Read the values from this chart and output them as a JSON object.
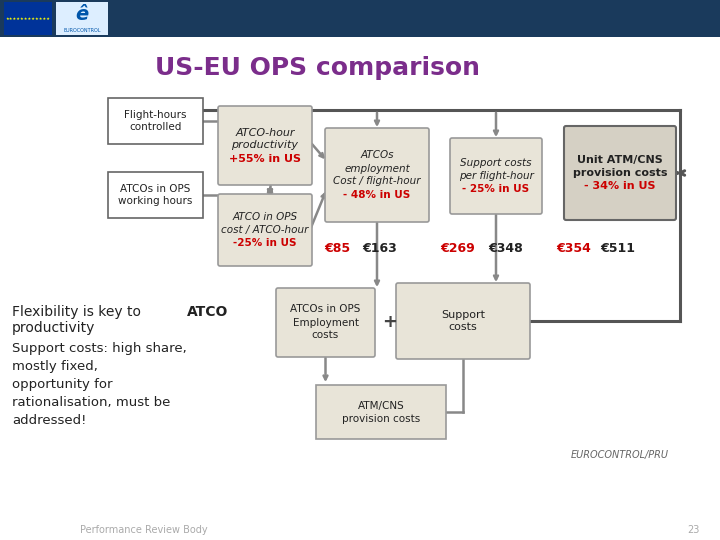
{
  "title": "US-EU OPS comparison",
  "title_color": "#7B2D8B",
  "title_fontsize": 18,
  "bg_color": "#ffffff",
  "header_bar_color": "#1a3a5c",
  "box_fill": "#e8e4d8",
  "box_fill_white": "#ffffff",
  "box_fill_dark": "#d5d0c4",
  "box_edge": "#999999",
  "box_edge_dark": "#666666",
  "arrow_color": "#888888",
  "dark_arrow_color": "#555555",
  "red_color": "#cc0000",
  "black_color": "#222222",
  "bottom_text": [
    [
      "Flexibility is key to ",
      "ATCO",
      false
    ],
    [
      "productivity",
      "",
      false
    ],
    [
      "Support costs: high share,",
      "",
      false
    ],
    [
      "mostly fixed,",
      "",
      false
    ],
    [
      "opportunity for",
      "",
      false
    ],
    [
      "rationalisation, must be",
      "",
      false
    ],
    [
      "addressed!",
      "",
      false
    ]
  ],
  "footer_text": "Performance Review Body",
  "footer_page": "23",
  "eurocontrol_label": "EUROCONTROL/PRU"
}
